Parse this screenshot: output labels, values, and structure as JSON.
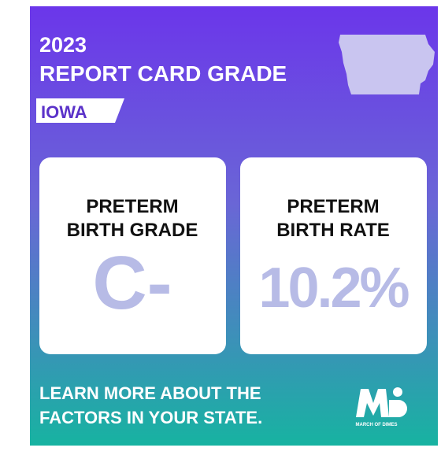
{
  "header": {
    "year": "2023",
    "title": "REPORT CARD GRADE",
    "state": "IOWA"
  },
  "cards": [
    {
      "label_lines": [
        "PRETERM",
        "BIRTH GRADE"
      ],
      "value": "C-"
    },
    {
      "label_lines": [
        "PRETERM",
        "BIRTH RATE"
      ],
      "value": "10.2%"
    }
  ],
  "footer": {
    "lines": [
      "LEARN MORE ABOUT THE",
      "FACTORS IN YOUR STATE."
    ]
  },
  "logo": {
    "text": "MARCH OF DIMES"
  }
}
